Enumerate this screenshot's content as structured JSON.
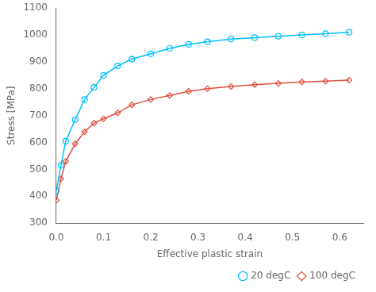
{
  "chart_data": {
    "type": "line",
    "xlabel": "Effective plastic strain",
    "ylabel": "Stress [MPa]",
    "xlim": [
      0,
      0.65
    ],
    "ylim": [
      300,
      1100
    ],
    "xticks": [
      {
        "value": 0.0,
        "label": "0.0"
      },
      0.1,
      0.2,
      0.3,
      0.4,
      0.5,
      0.6
    ],
    "yticks": [
      300,
      400,
      500,
      600,
      700,
      800,
      900,
      1000,
      1100
    ],
    "x": [
      0.0,
      0.01,
      0.02,
      0.04,
      0.06,
      0.08,
      0.1,
      0.13,
      0.16,
      0.2,
      0.24,
      0.28,
      0.32,
      0.37,
      0.42,
      0.47,
      0.52,
      0.57,
      0.62
    ],
    "series": [
      {
        "name": "20 degC",
        "color": "#00BFFF",
        "marker": "circle",
        "values": [
          420,
          515,
          605,
          685,
          760,
          805,
          850,
          885,
          910,
          930,
          950,
          965,
          975,
          985,
          990,
          995,
          1000,
          1005,
          1010
        ]
      },
      {
        "name": "100 degC",
        "color": "#E05040",
        "marker": "diamond",
        "values": [
          385,
          465,
          530,
          595,
          640,
          672,
          688,
          710,
          740,
          760,
          775,
          790,
          800,
          808,
          815,
          820,
          825,
          828,
          832
        ]
      }
    ],
    "legend": "lower right",
    "grid": false
  }
}
